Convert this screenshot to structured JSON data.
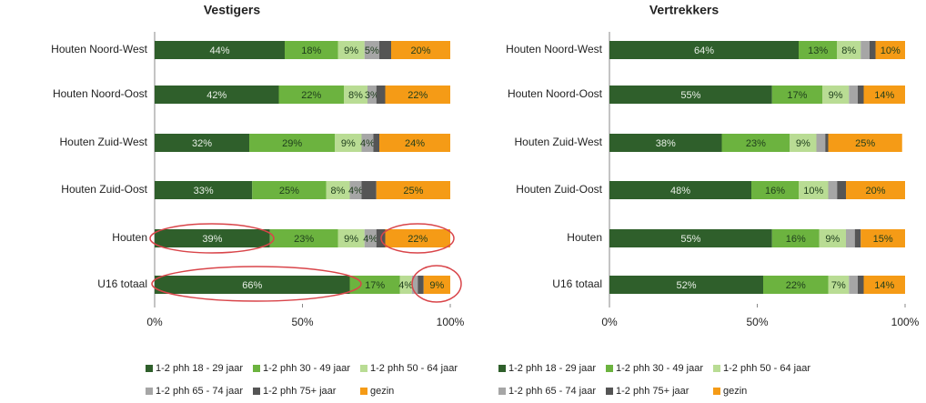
{
  "chart_data": [
    {
      "type": "bar",
      "orientation": "horizontal",
      "stacked": true,
      "title": "Vestigers",
      "categories": [
        "Houten Noord-West",
        "Houten Noord-Oost",
        "Houten Zuid-West",
        "Houten Zuid-Oost",
        "Houten",
        "U16 totaal"
      ],
      "xlim": [
        0,
        100
      ],
      "xticks": [
        {
          "value": 0,
          "label": "0%"
        },
        {
          "value": 50,
          "label": "50%"
        },
        {
          "value": 100,
          "label": "100%"
        }
      ],
      "series": [
        {
          "name": "1-2 phh 18 - 29 jaar",
          "color": "#2f5f2b",
          "values": [
            44,
            42,
            32,
            33,
            39,
            66
          ],
          "value_labels": [
            "44%",
            "42%",
            "32%",
            "33%",
            "39%",
            "66%"
          ]
        },
        {
          "name": "1-2 phh 30 - 49 jaar",
          "color": "#6cb33f",
          "values": [
            18,
            22,
            29,
            25,
            23,
            17
          ],
          "value_labels": [
            "18%",
            "22%",
            "29%",
            "25%",
            "23%",
            "17%"
          ]
        },
        {
          "name": "1-2 phh 50 - 64 jaar",
          "color": "#b9dc94",
          "values": [
            9,
            8,
            9,
            8,
            9,
            4
          ],
          "value_labels": [
            "9%",
            "8%",
            "9%",
            "8%",
            "9%",
            "4%"
          ]
        },
        {
          "name": "1-2 phh 65 - 74 jaar",
          "color": "#a6a6a6",
          "values": [
            5,
            3,
            4,
            4,
            4,
            2
          ],
          "value_labels": [
            "5%",
            "3%",
            "4%",
            "4%",
            "4%",
            null
          ]
        },
        {
          "name": "1-2 phh 75+ jaar",
          "color": "#555555",
          "values": [
            4,
            3,
            2,
            5,
            3,
            2
          ],
          "value_labels": [
            null,
            null,
            null,
            null,
            null,
            null
          ]
        },
        {
          "name": "gezin",
          "color": "#f59b16",
          "values": [
            20,
            22,
            24,
            25,
            22,
            9
          ],
          "value_labels": [
            "20%",
            "22%",
            "24%",
            "25%",
            "22%",
            "9%"
          ]
        }
      ]
    },
    {
      "type": "bar",
      "orientation": "horizontal",
      "stacked": true,
      "title": "Vertrekkers",
      "categories": [
        "Houten Noord-West",
        "Houten Noord-Oost",
        "Houten Zuid-West",
        "Houten Zuid-Oost",
        "Houten",
        "U16 totaal"
      ],
      "xlim": [
        0,
        100
      ],
      "xticks": [
        {
          "value": 0,
          "label": "0%"
        },
        {
          "value": 50,
          "label": "50%"
        },
        {
          "value": 100,
          "label": "100%"
        }
      ],
      "series": [
        {
          "name": "1-2 phh 18 - 29 jaar",
          "color": "#2f5f2b",
          "values": [
            64,
            55,
            38,
            48,
            55,
            52
          ],
          "value_labels": [
            "64%",
            "55%",
            "38%",
            "48%",
            "55%",
            "52%"
          ]
        },
        {
          "name": "1-2 phh 30 - 49 jaar",
          "color": "#6cb33f",
          "values": [
            13,
            17,
            23,
            16,
            16,
            22
          ],
          "value_labels": [
            "13%",
            "17%",
            "23%",
            "16%",
            "16%",
            "22%"
          ]
        },
        {
          "name": "1-2 phh 50 - 64 jaar",
          "color": "#b9dc94",
          "values": [
            8,
            9,
            9,
            10,
            9,
            7
          ],
          "value_labels": [
            "8%",
            "9%",
            "9%",
            "10%",
            "9%",
            "7%"
          ]
        },
        {
          "name": "1-2 phh 65 - 74 jaar",
          "color": "#a6a6a6",
          "values": [
            3,
            3,
            3,
            3,
            3,
            3
          ],
          "value_labels": [
            null,
            null,
            null,
            null,
            null,
            null
          ]
        },
        {
          "name": "1-2 phh 75+ jaar",
          "color": "#555555",
          "values": [
            2,
            2,
            1,
            3,
            2,
            2
          ],
          "value_labels": [
            null,
            null,
            null,
            null,
            null,
            null
          ]
        },
        {
          "name": "gezin",
          "color": "#f59b16",
          "values": [
            10,
            14,
            25,
            20,
            15,
            14
          ],
          "value_labels": [
            "10%",
            "14%",
            "25%",
            "20%",
            "15%",
            "14%"
          ]
        }
      ]
    }
  ]
}
